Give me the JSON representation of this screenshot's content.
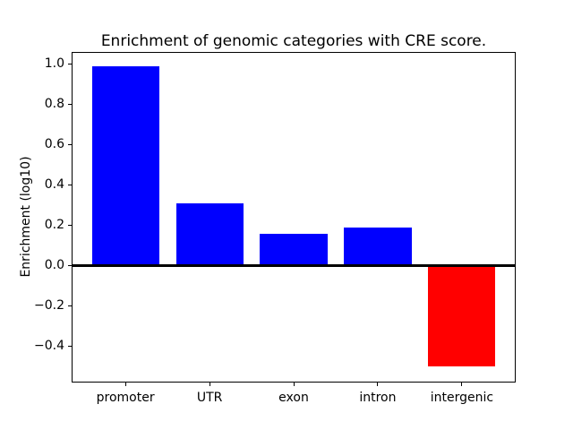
{
  "figure": {
    "background": "#ffffff",
    "axes_edge_color": "#000000"
  },
  "chart_data": {
    "type": "bar",
    "title": "Enrichment of genomic categories with CRE score.",
    "xlabel": "",
    "ylabel": "Enrichment (log10)",
    "categories": [
      "promoter",
      "UTR",
      "exon",
      "intron",
      "intergenic"
    ],
    "values": [
      0.99,
      0.31,
      0.16,
      0.19,
      -0.5
    ],
    "bar_colors": [
      "#0000ff",
      "#0000ff",
      "#0000ff",
      "#0000ff",
      "#ff0000"
    ],
    "positive_color": "#0000ff",
    "negative_color": "#ff0000",
    "bar_width": 0.8,
    "xlim": [
      -0.64,
      4.64
    ],
    "ylim": [
      -0.58,
      1.06
    ],
    "yticks": [
      {
        "value": 1.0,
        "label": "1.0"
      },
      {
        "value": 0.8,
        "label": "0.8"
      },
      {
        "value": 0.6,
        "label": "0.6"
      },
      {
        "value": 0.4,
        "label": "0.4"
      },
      {
        "value": 0.2,
        "label": "0.2"
      },
      {
        "value": 0.0,
        "label": "0.0"
      },
      {
        "value": -0.2,
        "label": "−0.2"
      },
      {
        "value": -0.4,
        "label": "−0.4"
      }
    ],
    "zero_line": true,
    "grid": false,
    "legend_position": "none"
  }
}
